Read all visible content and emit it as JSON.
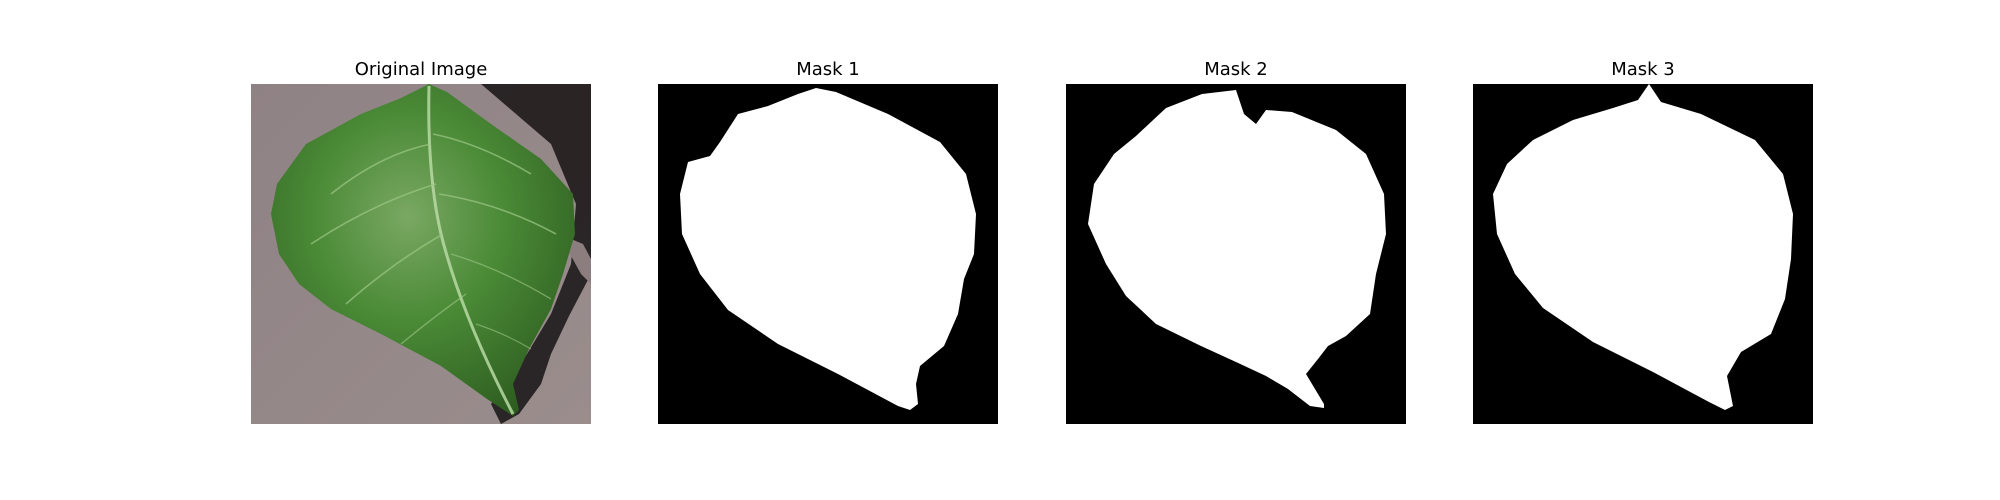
{
  "figure": {
    "panels": [
      {
        "title": "Original Image",
        "content": "leaf photograph on grey background"
      },
      {
        "title": "Mask 1",
        "content": "binary segmentation mask"
      },
      {
        "title": "Mask 2",
        "content": "binary segmentation mask"
      },
      {
        "title": "Mask 3",
        "content": "binary segmentation mask"
      }
    ]
  },
  "colors": {
    "background": "#ffffff",
    "mask_background": "#000000",
    "mask_foreground": "#ffffff",
    "leaf_green": "#3f7a2c",
    "surface_grey": "#8c7e7f"
  }
}
